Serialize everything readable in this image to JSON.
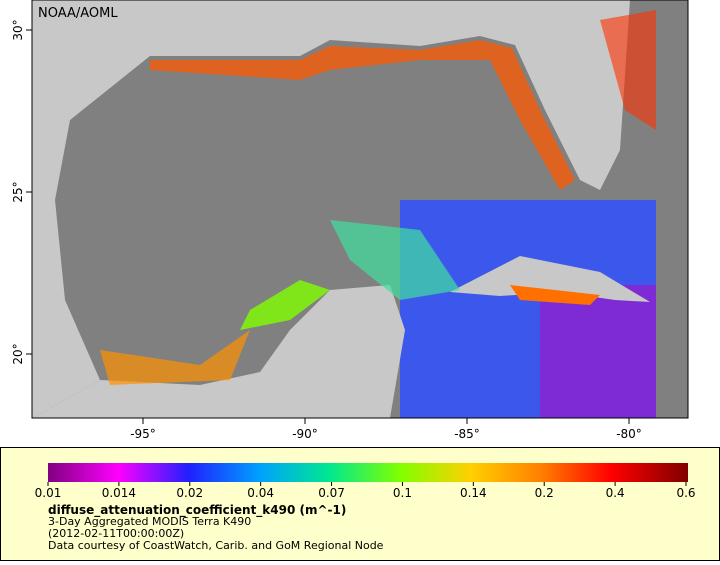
{
  "map": {
    "attribution": "NOAA/AOML",
    "lat_ticks": [
      {
        "value": 30,
        "label": "30°"
      },
      {
        "value": 25,
        "label": "25°"
      },
      {
        "value": 20,
        "label": "20°"
      }
    ],
    "lon_ticks": [
      {
        "value": -95,
        "label": "-95°"
      },
      {
        "value": -90,
        "label": "-90°"
      },
      {
        "value": -85,
        "label": "-85°"
      },
      {
        "value": -80,
        "label": "-80°"
      }
    ]
  },
  "colorbar": {
    "ticks": [
      0.01,
      0.014,
      0.02,
      0.04,
      0.07,
      0.1,
      0.14,
      0.2,
      0.4,
      0.6
    ]
  },
  "legend": {
    "variable": "diffuse_attenuation_coefficient_k490 (m^-1)",
    "lines": [
      "3-Day Aggregated MODIS Terra K490",
      "(2012-02-11T00:00:00Z)",
      "Data courtesy of CoastWatch, Carib. and GoM Regional Node"
    ]
  }
}
